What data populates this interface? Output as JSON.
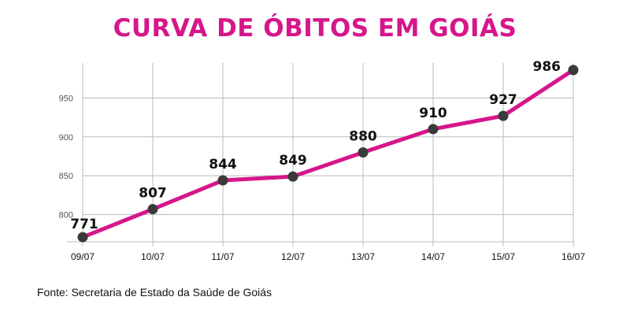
{
  "chart_data": {
    "type": "line",
    "title": "CURVA DE ÓBITOS EM GOIÁS",
    "categories": [
      "09/07",
      "10/07",
      "11/07",
      "12/07",
      "13/07",
      "14/07",
      "15/07",
      "16/07"
    ],
    "values": [
      771,
      807,
      844,
      849,
      880,
      910,
      927,
      986
    ],
    "ylim": [
      765,
      995
    ],
    "yticks": [
      800,
      850,
      900,
      950
    ],
    "grid": true,
    "line_color": "#d6168b",
    "marker_color": "#3a3a3a",
    "grid_color": "#b7bcbc"
  },
  "source": "Fonte: Secretaria de Estado da Saúde de Goiás"
}
